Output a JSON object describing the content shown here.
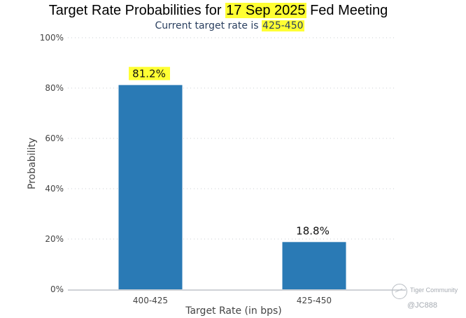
{
  "chart_data": {
    "type": "bar",
    "title_prefix": "Target Rate Probabilities for ",
    "title_date": "17 Sep 2025",
    "title_suffix": " Fed Meeting",
    "subtitle_prefix": "Current target rate is ",
    "subtitle_rate": "425-450",
    "xlabel": "Target Rate (in bps)",
    "ylabel": "Probability",
    "categories": [
      "400-425",
      "425-450"
    ],
    "values": [
      81.2,
      18.8
    ],
    "data_labels": [
      "81.2%",
      "18.8%"
    ],
    "highlighted_labels": [
      true,
      false
    ],
    "ylim": [
      0,
      100
    ],
    "y_ticks": [
      0,
      20,
      40,
      60,
      80,
      100
    ],
    "y_tick_labels": [
      "0%",
      "20%",
      "40%",
      "60%",
      "80%",
      "100%"
    ],
    "grid": true,
    "bar_color": "#2a7ab5",
    "highlight_color": "#ffff33"
  },
  "watermark": {
    "brand": "Tiger Community",
    "handle": "@JC888"
  }
}
